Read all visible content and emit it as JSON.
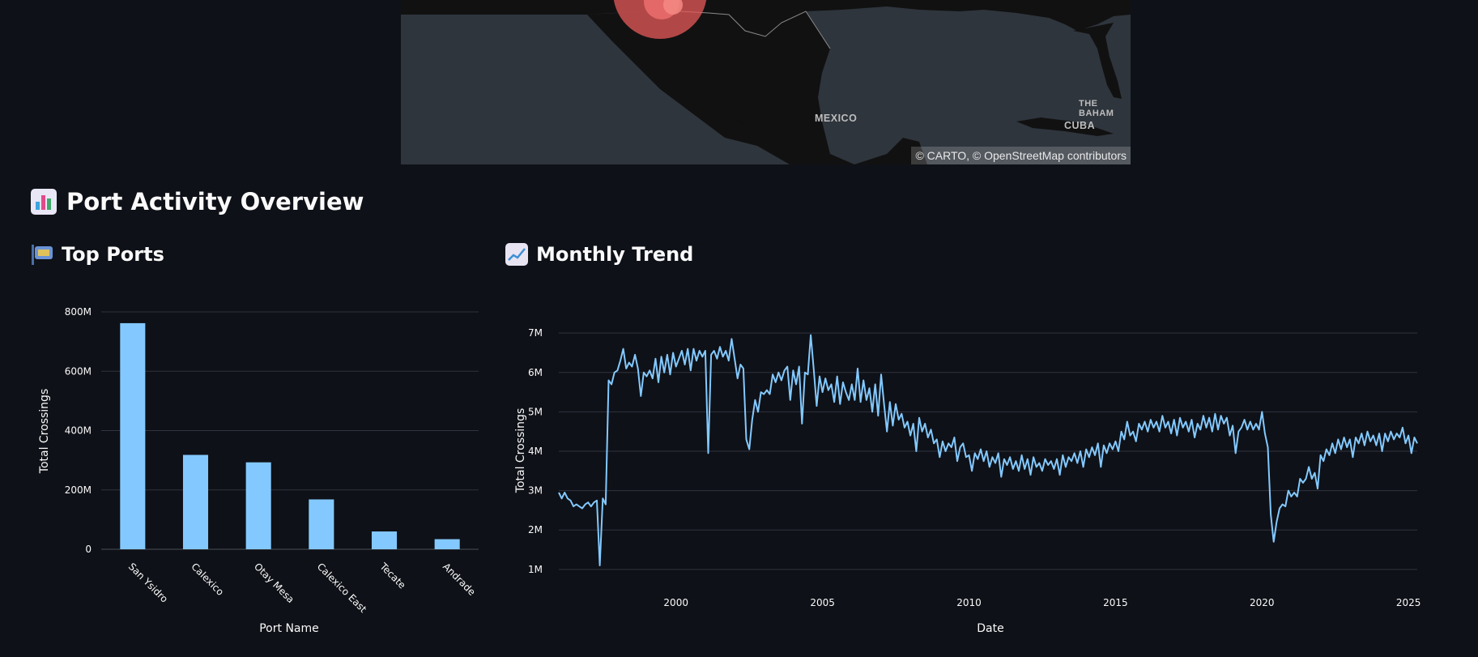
{
  "map": {
    "attribution": "© CARTO, © OpenStreetMap contributors",
    "labels": [
      {
        "name": "mexico",
        "text": "MEXICO"
      },
      {
        "name": "cuba",
        "text": "CUBA"
      },
      {
        "name": "bahamas",
        "text": "THE BAHAM"
      }
    ],
    "marker_color": "#e8595a"
  },
  "section": {
    "title": "Port Activity Overview",
    "icon": "bar-chart-icon"
  },
  "top_ports": {
    "title": "Top Ports",
    "icon": "customs-icon"
  },
  "monthly_trend": {
    "title": "Monthly Trend",
    "icon": "trend-up-icon"
  },
  "chart_data": [
    {
      "type": "bar",
      "title": "",
      "xlabel": "Port Name",
      "ylabel": "Total Crossings",
      "categories": [
        "San Ysidro",
        "Calexico",
        "Otay Mesa",
        "Calexico East",
        "Tecate",
        "Andrade"
      ],
      "values": [
        762,
        318,
        293,
        168,
        60,
        34
      ],
      "value_unit": "M",
      "ylim": [
        0,
        800
      ],
      "yticks": [
        "0",
        "200M",
        "400M",
        "600M",
        "800M"
      ],
      "ytick_values": [
        0,
        200,
        400,
        600,
        800
      ],
      "grid": true,
      "color": "#83c9ff"
    },
    {
      "type": "line",
      "title": "",
      "xlabel": "Date",
      "ylabel": "Total Crossings",
      "x_range": [
        1996.0,
        2025.3
      ],
      "ylim": [
        1,
        7
      ],
      "value_unit": "M",
      "yticks": [
        "1M",
        "2M",
        "3M",
        "4M",
        "5M",
        "6M",
        "7M"
      ],
      "ytick_values": [
        1,
        2,
        3,
        4,
        5,
        6,
        7
      ],
      "xticks": [
        "2000",
        "2005",
        "2010",
        "2015",
        "2020",
        "2025"
      ],
      "xtick_values": [
        2000,
        2005,
        2010,
        2015,
        2020,
        2025
      ],
      "grid": true,
      "color": "#83c9ff",
      "points": [
        [
          1996.0,
          2.95
        ],
        [
          1996.1,
          2.8
        ],
        [
          1996.2,
          2.95
        ],
        [
          1996.3,
          2.8
        ],
        [
          1996.4,
          2.75
        ],
        [
          1996.5,
          2.6
        ],
        [
          1996.6,
          2.65
        ],
        [
          1996.7,
          2.6
        ],
        [
          1996.8,
          2.55
        ],
        [
          1996.9,
          2.65
        ],
        [
          1997.0,
          2.7
        ],
        [
          1997.1,
          2.6
        ],
        [
          1997.2,
          2.7
        ],
        [
          1997.3,
          2.75
        ],
        [
          1997.4,
          1.1
        ],
        [
          1997.5,
          2.8
        ],
        [
          1997.6,
          2.65
        ],
        [
          1997.7,
          5.8
        ],
        [
          1997.8,
          5.7
        ],
        [
          1997.9,
          6.0
        ],
        [
          1998.0,
          6.05
        ],
        [
          1998.1,
          6.3
        ],
        [
          1998.2,
          6.6
        ],
        [
          1998.3,
          6.1
        ],
        [
          1998.4,
          6.25
        ],
        [
          1998.5,
          6.15
        ],
        [
          1998.6,
          6.45
        ],
        [
          1998.7,
          6.1
        ],
        [
          1998.8,
          5.4
        ],
        [
          1998.9,
          6.0
        ],
        [
          1999.0,
          5.9
        ],
        [
          1999.1,
          6.05
        ],
        [
          1999.2,
          5.85
        ],
        [
          1999.3,
          6.35
        ],
        [
          1999.4,
          5.75
        ],
        [
          1999.5,
          6.4
        ],
        [
          1999.6,
          6.0
        ],
        [
          1999.7,
          6.45
        ],
        [
          1999.8,
          5.95
        ],
        [
          1999.9,
          6.5
        ],
        [
          2000.0,
          6.15
        ],
        [
          2000.1,
          6.35
        ],
        [
          2000.2,
          6.55
        ],
        [
          2000.3,
          6.2
        ],
        [
          2000.4,
          6.6
        ],
        [
          2000.5,
          6.05
        ],
        [
          2000.6,
          6.6
        ],
        [
          2000.7,
          6.3
        ],
        [
          2000.8,
          6.55
        ],
        [
          2000.9,
          6.4
        ],
        [
          2001.0,
          6.55
        ],
        [
          2001.1,
          3.95
        ],
        [
          2001.2,
          6.45
        ],
        [
          2001.3,
          6.55
        ],
        [
          2001.4,
          6.35
        ],
        [
          2001.5,
          6.65
        ],
        [
          2001.6,
          6.4
        ],
        [
          2001.7,
          6.55
        ],
        [
          2001.8,
          6.3
        ],
        [
          2001.9,
          6.85
        ],
        [
          2002.0,
          6.35
        ],
        [
          2002.1,
          5.85
        ],
        [
          2002.2,
          6.2
        ],
        [
          2002.3,
          6.1
        ],
        [
          2002.4,
          4.3
        ],
        [
          2002.5,
          4.05
        ],
        [
          2002.6,
          4.8
        ],
        [
          2002.7,
          5.3
        ],
        [
          2002.8,
          5.0
        ],
        [
          2002.9,
          5.5
        ],
        [
          2003.0,
          5.45
        ],
        [
          2003.1,
          5.55
        ],
        [
          2003.2,
          5.45
        ],
        [
          2003.3,
          5.95
        ],
        [
          2003.4,
          5.75
        ],
        [
          2003.5,
          6.0
        ],
        [
          2003.6,
          5.8
        ],
        [
          2003.7,
          6.05
        ],
        [
          2003.8,
          6.15
        ],
        [
          2003.9,
          5.3
        ],
        [
          2004.0,
          6.05
        ],
        [
          2004.1,
          5.7
        ],
        [
          2004.2,
          6.15
        ],
        [
          2004.3,
          4.7
        ],
        [
          2004.4,
          6.0
        ],
        [
          2004.5,
          5.95
        ],
        [
          2004.6,
          6.95
        ],
        [
          2004.7,
          6.1
        ],
        [
          2004.8,
          5.15
        ],
        [
          2004.9,
          5.9
        ],
        [
          2005.0,
          5.5
        ],
        [
          2005.1,
          5.85
        ],
        [
          2005.2,
          5.55
        ],
        [
          2005.3,
          5.7
        ],
        [
          2005.4,
          5.25
        ],
        [
          2005.5,
          5.9
        ],
        [
          2005.6,
          5.2
        ],
        [
          2005.7,
          5.75
        ],
        [
          2005.8,
          5.5
        ],
        [
          2005.9,
          5.3
        ],
        [
          2006.0,
          5.7
        ],
        [
          2006.1,
          5.3
        ],
        [
          2006.2,
          6.1
        ],
        [
          2006.3,
          5.25
        ],
        [
          2006.4,
          5.8
        ],
        [
          2006.5,
          5.3
        ],
        [
          2006.6,
          5.6
        ],
        [
          2006.7,
          5.0
        ],
        [
          2006.8,
          5.7
        ],
        [
          2006.9,
          4.9
        ],
        [
          2007.0,
          5.95
        ],
        [
          2007.1,
          5.2
        ],
        [
          2007.2,
          4.5
        ],
        [
          2007.3,
          5.25
        ],
        [
          2007.4,
          4.65
        ],
        [
          2007.5,
          5.2
        ],
        [
          2007.6,
          4.8
        ],
        [
          2007.7,
          4.95
        ],
        [
          2007.8,
          4.6
        ],
        [
          2007.9,
          4.75
        ],
        [
          2008.0,
          4.4
        ],
        [
          2008.1,
          4.7
        ],
        [
          2008.2,
          4.0
        ],
        [
          2008.3,
          4.85
        ],
        [
          2008.4,
          4.5
        ],
        [
          2008.5,
          4.7
        ],
        [
          2008.6,
          4.35
        ],
        [
          2008.7,
          4.55
        ],
        [
          2008.8,
          4.2
        ],
        [
          2008.9,
          4.3
        ],
        [
          2009.0,
          3.85
        ],
        [
          2009.1,
          4.25
        ],
        [
          2009.2,
          4.0
        ],
        [
          2009.3,
          4.2
        ],
        [
          2009.4,
          4.1
        ],
        [
          2009.5,
          4.35
        ],
        [
          2009.6,
          3.75
        ],
        [
          2009.7,
          4.1
        ],
        [
          2009.8,
          4.2
        ],
        [
          2009.9,
          3.85
        ],
        [
          2010.0,
          3.9
        ],
        [
          2010.1,
          3.5
        ],
        [
          2010.2,
          3.95
        ],
        [
          2010.3,
          3.8
        ],
        [
          2010.4,
          4.05
        ],
        [
          2010.5,
          3.75
        ],
        [
          2010.6,
          4.0
        ],
        [
          2010.7,
          3.6
        ],
        [
          2010.8,
          3.85
        ],
        [
          2010.9,
          3.7
        ],
        [
          2011.0,
          3.95
        ],
        [
          2011.1,
          3.35
        ],
        [
          2011.2,
          3.8
        ],
        [
          2011.3,
          3.65
        ],
        [
          2011.4,
          3.85
        ],
        [
          2011.5,
          3.55
        ],
        [
          2011.6,
          3.75
        ],
        [
          2011.7,
          3.5
        ],
        [
          2011.8,
          3.9
        ],
        [
          2011.9,
          3.55
        ],
        [
          2012.0,
          3.8
        ],
        [
          2012.1,
          3.4
        ],
        [
          2012.2,
          3.85
        ],
        [
          2012.3,
          3.6
        ],
        [
          2012.4,
          3.7
        ],
        [
          2012.5,
          3.5
        ],
        [
          2012.6,
          3.8
        ],
        [
          2012.7,
          3.65
        ],
        [
          2012.8,
          3.75
        ],
        [
          2012.9,
          3.55
        ],
        [
          2013.0,
          3.8
        ],
        [
          2013.1,
          3.4
        ],
        [
          2013.2,
          3.9
        ],
        [
          2013.3,
          3.6
        ],
        [
          2013.4,
          3.85
        ],
        [
          2013.5,
          3.75
        ],
        [
          2013.6,
          3.95
        ],
        [
          2013.7,
          3.7
        ],
        [
          2013.8,
          4.0
        ],
        [
          2013.9,
          3.6
        ],
        [
          2014.0,
          4.05
        ],
        [
          2014.1,
          3.85
        ],
        [
          2014.2,
          4.1
        ],
        [
          2014.3,
          3.9
        ],
        [
          2014.4,
          4.2
        ],
        [
          2014.5,
          3.6
        ],
        [
          2014.6,
          4.15
        ],
        [
          2014.7,
          3.95
        ],
        [
          2014.8,
          4.2
        ],
        [
          2014.9,
          4.05
        ],
        [
          2015.0,
          4.25
        ],
        [
          2015.1,
          4.0
        ],
        [
          2015.2,
          4.5
        ],
        [
          2015.3,
          4.3
        ],
        [
          2015.4,
          4.75
        ],
        [
          2015.5,
          4.4
        ],
        [
          2015.6,
          4.5
        ],
        [
          2015.7,
          4.25
        ],
        [
          2015.8,
          4.7
        ],
        [
          2015.9,
          4.55
        ],
        [
          2016.0,
          4.75
        ],
        [
          2016.1,
          4.5
        ],
        [
          2016.2,
          4.8
        ],
        [
          2016.3,
          4.6
        ],
        [
          2016.4,
          4.75
        ],
        [
          2016.5,
          4.5
        ],
        [
          2016.6,
          4.9
        ],
        [
          2016.7,
          4.6
        ],
        [
          2016.8,
          4.75
        ],
        [
          2016.9,
          4.45
        ],
        [
          2017.0,
          4.8
        ],
        [
          2017.1,
          4.4
        ],
        [
          2017.2,
          4.85
        ],
        [
          2017.3,
          4.6
        ],
        [
          2017.4,
          4.75
        ],
        [
          2017.5,
          4.5
        ],
        [
          2017.6,
          4.8
        ],
        [
          2017.7,
          4.35
        ],
        [
          2017.8,
          4.7
        ],
        [
          2017.9,
          4.55
        ],
        [
          2018.0,
          4.9
        ],
        [
          2018.1,
          4.6
        ],
        [
          2018.2,
          4.85
        ],
        [
          2018.3,
          4.5
        ],
        [
          2018.4,
          4.95
        ],
        [
          2018.5,
          4.55
        ],
        [
          2018.6,
          4.9
        ],
        [
          2018.7,
          4.7
        ],
        [
          2018.8,
          4.85
        ],
        [
          2018.9,
          4.4
        ],
        [
          2019.0,
          4.65
        ],
        [
          2019.1,
          3.95
        ],
        [
          2019.2,
          4.5
        ],
        [
          2019.3,
          4.6
        ],
        [
          2019.4,
          4.8
        ],
        [
          2019.5,
          4.55
        ],
        [
          2019.6,
          4.75
        ],
        [
          2019.7,
          4.55
        ],
        [
          2019.8,
          4.7
        ],
        [
          2019.9,
          4.55
        ],
        [
          2020.0,
          5.0
        ],
        [
          2020.1,
          4.45
        ],
        [
          2020.2,
          4.1
        ],
        [
          2020.3,
          2.4
        ],
        [
          2020.4,
          1.7
        ],
        [
          2020.5,
          2.2
        ],
        [
          2020.6,
          2.55
        ],
        [
          2020.7,
          2.65
        ],
        [
          2020.8,
          2.6
        ],
        [
          2020.9,
          3.0
        ],
        [
          2021.0,
          2.85
        ],
        [
          2021.1,
          2.95
        ],
        [
          2021.2,
          2.85
        ],
        [
          2021.3,
          3.3
        ],
        [
          2021.4,
          3.2
        ],
        [
          2021.5,
          3.3
        ],
        [
          2021.6,
          3.6
        ],
        [
          2021.7,
          3.3
        ],
        [
          2021.8,
          3.45
        ],
        [
          2021.9,
          3.05
        ],
        [
          2022.0,
          3.9
        ],
        [
          2022.1,
          3.75
        ],
        [
          2022.2,
          4.05
        ],
        [
          2022.3,
          3.9
        ],
        [
          2022.4,
          4.2
        ],
        [
          2022.5,
          3.95
        ],
        [
          2022.6,
          4.3
        ],
        [
          2022.7,
          4.05
        ],
        [
          2022.8,
          4.35
        ],
        [
          2022.9,
          4.1
        ],
        [
          2023.0,
          4.3
        ],
        [
          2023.1,
          3.85
        ],
        [
          2023.2,
          4.35
        ],
        [
          2023.3,
          4.2
        ],
        [
          2023.4,
          4.45
        ],
        [
          2023.5,
          4.15
        ],
        [
          2023.6,
          4.5
        ],
        [
          2023.7,
          4.25
        ],
        [
          2023.8,
          4.4
        ],
        [
          2023.9,
          4.15
        ],
        [
          2024.0,
          4.45
        ],
        [
          2024.1,
          4.0
        ],
        [
          2024.2,
          4.45
        ],
        [
          2024.3,
          4.25
        ],
        [
          2024.4,
          4.5
        ],
        [
          2024.5,
          4.3
        ],
        [
          2024.6,
          4.45
        ],
        [
          2024.7,
          4.35
        ],
        [
          2024.8,
          4.6
        ],
        [
          2024.9,
          4.2
        ],
        [
          2025.0,
          4.4
        ],
        [
          2025.1,
          3.95
        ],
        [
          2025.2,
          4.35
        ],
        [
          2025.3,
          4.2
        ]
      ]
    }
  ]
}
